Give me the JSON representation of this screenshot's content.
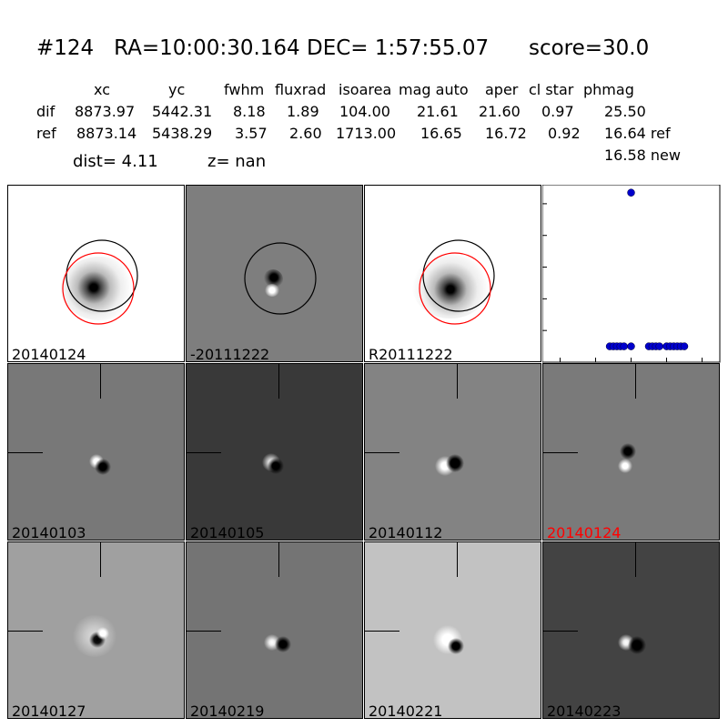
{
  "header": {
    "title": "#124   RA=10:00:30.164 DEC= 1:57:55.07      score=30.0",
    "dist": "dist=  4.11",
    "z": "z=   nan",
    "columns": [
      "xc",
      "yc",
      "fwhm",
      "fluxrad",
      "isoarea",
      "mag auto",
      "aper",
      "cl star",
      "phmag"
    ],
    "rows": [
      {
        "label": "dif",
        "values": [
          "8873.97",
          "5442.31",
          "8.18",
          "1.89",
          "104.00",
          "21.61",
          "21.60",
          "0.97",
          "25.50"
        ]
      },
      {
        "label": "ref",
        "values": [
          "8873.14",
          "5438.29",
          "3.57",
          "2.60",
          "1713.00",
          "16.65",
          "16.72",
          "0.92",
          "16.64 ref"
        ]
      }
    ],
    "extra": "16.58 new"
  },
  "panels": [
    {
      "label": "20140124",
      "bg": "#ffffff"
    },
    {
      "label": "-20111222",
      "bg": "#7e7e7e"
    },
    {
      "label": "R20111222",
      "bg": "#ffffff"
    },
    {
      "label": "20140103",
      "bg": "#787878"
    },
    {
      "label": "20140105",
      "bg": "#393939"
    },
    {
      "label": "20140112",
      "bg": "#838383"
    },
    {
      "label": "20140124",
      "bg": "#7a7a7a",
      "highlight": "#ff0000"
    },
    {
      "label": "20140127",
      "bg": "#a0a0a0"
    },
    {
      "label": "20140219",
      "bg": "#747474"
    },
    {
      "label": "20140221",
      "bg": "#c2c2c2"
    },
    {
      "label": "20140223",
      "bg": "#434343"
    }
  ],
  "chart_data": {
    "type": "scatter",
    "xlim": [
      -125,
      125
    ],
    "ylim": [
      26,
      20.4
    ],
    "xticks": [
      -100,
      -50,
      0,
      50,
      100
    ],
    "yticks": [
      21,
      22,
      23,
      24,
      25,
      26
    ],
    "color": "#0000cc",
    "points": [
      {
        "x": 0,
        "y": 20.65
      },
      {
        "x": -30,
        "y": 25.5
      },
      {
        "x": -25,
        "y": 25.5
      },
      {
        "x": -20,
        "y": 25.5
      },
      {
        "x": -15,
        "y": 25.5
      },
      {
        "x": -10,
        "y": 25.5
      },
      {
        "x": 0,
        "y": 25.5
      },
      {
        "x": 25,
        "y": 25.5
      },
      {
        "x": 30,
        "y": 25.5
      },
      {
        "x": 35,
        "y": 25.5
      },
      {
        "x": 40,
        "y": 25.5
      },
      {
        "x": 50,
        "y": 25.5
      },
      {
        "x": 55,
        "y": 25.5
      },
      {
        "x": 60,
        "y": 25.5
      },
      {
        "x": 65,
        "y": 25.5
      },
      {
        "x": 70,
        "y": 25.5
      },
      {
        "x": 75,
        "y": 25.5
      }
    ]
  }
}
